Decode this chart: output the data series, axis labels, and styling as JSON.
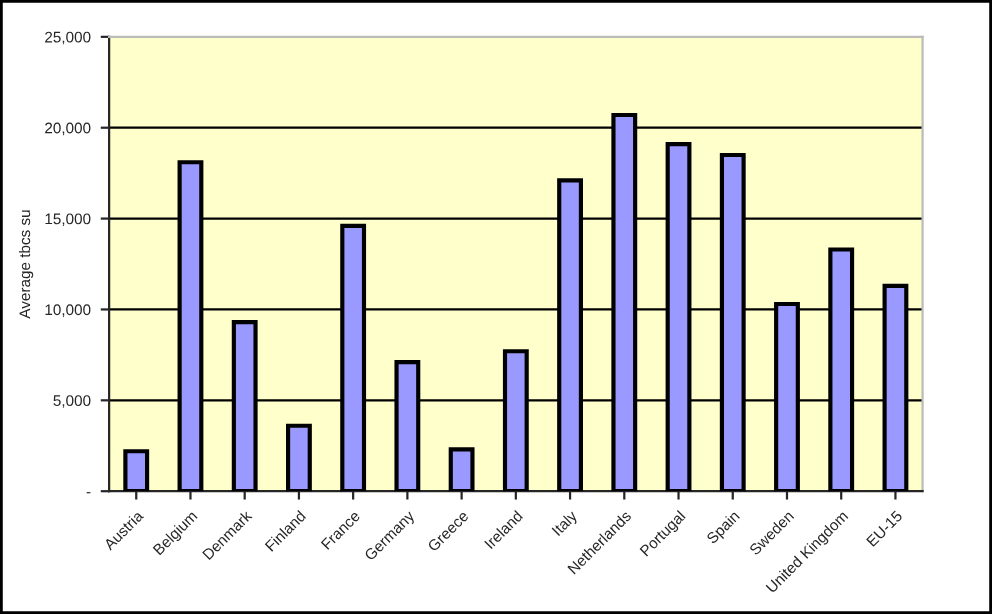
{
  "chart_data": {
    "type": "bar",
    "ylabel": "Average tbcs su",
    "categories": [
      "Austria",
      "Belgium",
      "Denmark",
      "Finland",
      "France",
      "Germany",
      "Greece",
      "Ireland",
      "Italy",
      "Netherlands",
      "Portugal",
      "Spain",
      "Sweden",
      "United Kingdom",
      "EU-15"
    ],
    "values": [
      2200,
      18100,
      9300,
      3600,
      14600,
      7100,
      2300,
      7700,
      17100,
      20700,
      19100,
      18500,
      10300,
      13300,
      11300
    ],
    "color": "#9999ff",
    "ylim": [
      0,
      25000
    ],
    "yticks": [
      {
        "value": 0,
        "label": "-"
      },
      {
        "value": 5000,
        "label": "5,000"
      },
      {
        "value": 10000,
        "label": "10,000"
      },
      {
        "value": 15000,
        "label": "15,000"
      },
      {
        "value": 20000,
        "label": "20,000"
      },
      {
        "value": 25000,
        "label": "25,000"
      }
    ],
    "grid": "y"
  }
}
